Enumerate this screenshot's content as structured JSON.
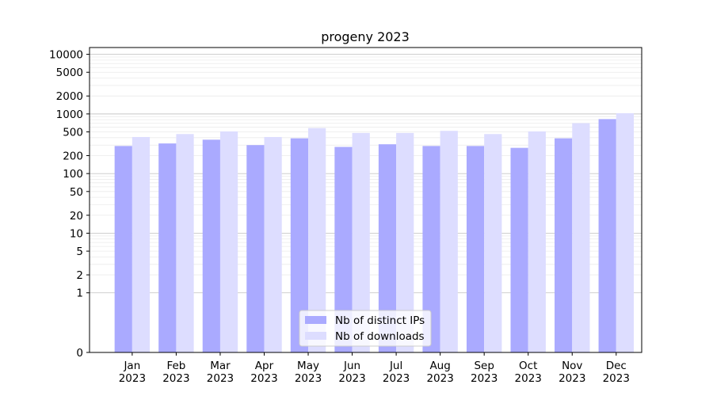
{
  "chart_data": {
    "type": "bar",
    "title": "progeny 2023",
    "xlabel": "",
    "ylabel": "",
    "y_scale": "symlog",
    "ylim": [
      0,
      13000
    ],
    "yticks": [
      0,
      1,
      2,
      5,
      10,
      20,
      50,
      100,
      200,
      500,
      1000,
      2000,
      5000,
      10000
    ],
    "grid": "horizontal",
    "legend_position": "lower center",
    "categories": [
      "Jan\n2023",
      "Feb\n2023",
      "Mar\n2023",
      "Apr\n2023",
      "May\n2023",
      "Jun\n2023",
      "Jul\n2023",
      "Aug\n2023",
      "Sep\n2023",
      "Oct\n2023",
      "Nov\n2023",
      "Dec\n2023"
    ],
    "series": [
      {
        "name": "Nb of distinct IPs",
        "color": "#aaaaff",
        "values": [
          290,
          320,
          370,
          300,
          390,
          280,
          310,
          290,
          290,
          270,
          390,
          820
        ]
      },
      {
        "name": "Nb of downloads",
        "color": "#ddddff",
        "values": [
          410,
          460,
          510,
          410,
          580,
          480,
          480,
          520,
          460,
          510,
          700,
          1030
        ]
      }
    ]
  }
}
